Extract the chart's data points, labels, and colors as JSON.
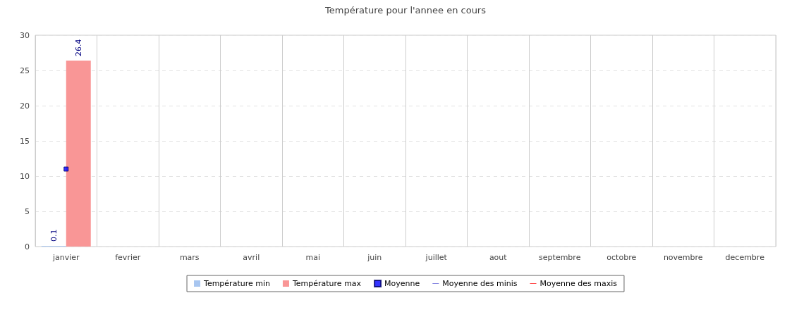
{
  "chart_data": {
    "type": "bar",
    "title": "Température pour l'annee en cours",
    "categories": [
      "janvier",
      "fevrier",
      "mars",
      "avril",
      "mai",
      "juin",
      "juillet",
      "aout",
      "septembre",
      "octobre",
      "novembre",
      "decembre"
    ],
    "series": [
      {
        "name": "Température min",
        "color": "#a8c6f0",
        "values": [
          0.1,
          null,
          null,
          null,
          null,
          null,
          null,
          null,
          null,
          null,
          null,
          null
        ],
        "value_labels": [
          "0.1",
          null,
          null,
          null,
          null,
          null,
          null,
          null,
          null,
          null,
          null,
          null
        ]
      },
      {
        "name": "Température max",
        "color": "#f99696",
        "values": [
          26.4,
          null,
          null,
          null,
          null,
          null,
          null,
          null,
          null,
          null,
          null,
          null
        ],
        "value_labels": [
          "26.4",
          null,
          null,
          null,
          null,
          null,
          null,
          null,
          null,
          null,
          null,
          null
        ]
      },
      {
        "name": "Moyenne",
        "type": "scatter",
        "color": "#0000ff",
        "marker": "square",
        "values": [
          11,
          null,
          null,
          null,
          null,
          null,
          null,
          null,
          null,
          null,
          null,
          null
        ]
      },
      {
        "name": "Moyenne des minis",
        "type": "line",
        "color": "#7777dd",
        "values": [
          null,
          null,
          null,
          null,
          null,
          null,
          null,
          null,
          null,
          null,
          null,
          null
        ]
      },
      {
        "name": "Moyenne des maxis",
        "type": "line",
        "color": "#ff3333",
        "values": [
          null,
          null,
          null,
          null,
          null,
          null,
          null,
          null,
          null,
          null,
          null,
          null
        ]
      }
    ],
    "ylim": [
      0,
      30
    ],
    "yticks": [
      0,
      5,
      10,
      15,
      20,
      25,
      30
    ],
    "grid": true,
    "legend": "bottom"
  }
}
